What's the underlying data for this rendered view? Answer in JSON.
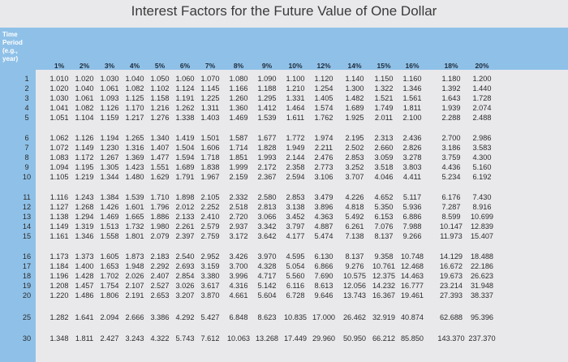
{
  "title": "Interest Factors for the Future Value of One Dollar",
  "header": {
    "row_label": [
      "Time",
      "Period",
      "(e.g.,",
      "year)"
    ],
    "rates": [
      "1%",
      "2%",
      "3%",
      "4%",
      "5%",
      "6%",
      "7%",
      "8%",
      "9%",
      "10%",
      "12%",
      "14%",
      "15%",
      "16%",
      "18%",
      "20%"
    ]
  },
  "rows": [
    {
      "period": "1",
      "values": [
        "1.010",
        "1.020",
        "1.030",
        "1.040",
        "1.050",
        "1.060",
        "1.070",
        "1.080",
        "1.090",
        "1.100",
        "1.120",
        "1.140",
        "1.150",
        "1.160",
        "1.180",
        "1.200"
      ]
    },
    {
      "period": "2",
      "values": [
        "1.020",
        "1.040",
        "1.061",
        "1.082",
        "1.102",
        "1.124",
        "1.145",
        "1.166",
        "1.188",
        "1.210",
        "1.254",
        "1.300",
        "1.322",
        "1.346",
        "1.392",
        "1.440"
      ]
    },
    {
      "period": "3",
      "values": [
        "1.030",
        "1.061",
        "1.093",
        "1.125",
        "1.158",
        "1.191",
        "1.225",
        "1.260",
        "1.295",
        "1.331",
        "1.405",
        "1.482",
        "1.521",
        "1.561",
        "1.643",
        "1.728"
      ]
    },
    {
      "period": "4",
      "values": [
        "1.041",
        "1.082",
        "1.126",
        "1.170",
        "1.216",
        "1.262",
        "1.311",
        "1.360",
        "1.412",
        "1.464",
        "1.574",
        "1.689",
        "1.749",
        "1.811",
        "1.939",
        "2.074"
      ]
    },
    {
      "period": "5",
      "values": [
        "1.051",
        "1.104",
        "1.159",
        "1.217",
        "1.276",
        "1.338",
        "1.403",
        "1.469",
        "1.539",
        "1.611",
        "1.762",
        "1.925",
        "2.011",
        "2.100",
        "2.288",
        "2.488"
      ]
    },
    {
      "period": "6",
      "values": [
        "1.062",
        "1.126",
        "1.194",
        "1.265",
        "1.340",
        "1.419",
        "1.501",
        "1.587",
        "1.677",
        "1.772",
        "1.974",
        "2.195",
        "2.313",
        "2.436",
        "2.700",
        "2.986"
      ]
    },
    {
      "period": "7",
      "values": [
        "1.072",
        "1.149",
        "1.230",
        "1.316",
        "1.407",
        "1.504",
        "1.606",
        "1.714",
        "1.828",
        "1.949",
        "2.211",
        "2.502",
        "2.660",
        "2.826",
        "3.186",
        "3.583"
      ]
    },
    {
      "period": "8",
      "values": [
        "1.083",
        "1.172",
        "1.267",
        "1.369",
        "1.477",
        "1.594",
        "1.718",
        "1.851",
        "1.993",
        "2.144",
        "2.476",
        "2.853",
        "3.059",
        "3.278",
        "3.759",
        "4.300"
      ]
    },
    {
      "period": "9",
      "values": [
        "1.094",
        "1.195",
        "1.305",
        "1.423",
        "1.551",
        "1.689",
        "1.838",
        "1.999",
        "2.172",
        "2.358",
        "2.773",
        "3.252",
        "3.518",
        "3.803",
        "4.436",
        "5.160"
      ]
    },
    {
      "period": "10",
      "values": [
        "1.105",
        "1.219",
        "1.344",
        "1.480",
        "1.629",
        "1.791",
        "1.967",
        "2.159",
        "2.367",
        "2.594",
        "3.106",
        "3.707",
        "4.046",
        "4.411",
        "5.234",
        "6.192"
      ]
    },
    {
      "period": "11",
      "values": [
        "1.116",
        "1.243",
        "1.384",
        "1.539",
        "1.710",
        "1.898",
        "2.105",
        "2.332",
        "2.580",
        "2.853",
        "3.479",
        "4.226",
        "4.652",
        "5.117",
        "6.176",
        "7.430"
      ]
    },
    {
      "period": "12",
      "values": [
        "1.127",
        "1.268",
        "1.426",
        "1.601",
        "1.796",
        "2.012",
        "2.252",
        "2.518",
        "2.813",
        "3.138",
        "3.896",
        "4.818",
        "5.350",
        "5.936",
        "7.287",
        "8.916"
      ]
    },
    {
      "period": "13",
      "values": [
        "1.138",
        "1.294",
        "1.469",
        "1.665",
        "1.886",
        "2.133",
        "2.410",
        "2.720",
        "3.066",
        "3.452",
        "4.363",
        "5.492",
        "6.153",
        "6.886",
        "8.599",
        "10.699"
      ]
    },
    {
      "period": "14",
      "values": [
        "1.149",
        "1.319",
        "1.513",
        "1.732",
        "1.980",
        "2.261",
        "2.579",
        "2.937",
        "3.342",
        "3.797",
        "4.887",
        "6.261",
        "7.076",
        "7.988",
        "10.147",
        "12.839"
      ]
    },
    {
      "period": "15",
      "values": [
        "1.161",
        "1.346",
        "1.558",
        "1.801",
        "2.079",
        "2.397",
        "2.759",
        "3.172",
        "3.642",
        "4.177",
        "5.474",
        "7.138",
        "8.137",
        "9.266",
        "11.973",
        "15.407"
      ]
    },
    {
      "period": "16",
      "values": [
        "1.173",
        "1.373",
        "1.605",
        "1.873",
        "2.183",
        "2.540",
        "2.952",
        "3.426",
        "3.970",
        "4.595",
        "6.130",
        "8.137",
        "9.358",
        "10.748",
        "14.129",
        "18.488"
      ]
    },
    {
      "period": "17",
      "values": [
        "1.184",
        "1.400",
        "1.653",
        "1.948",
        "2.292",
        "2.693",
        "3.159",
        "3.700",
        "4.328",
        "5.054",
        "6.866",
        "9.276",
        "10.761",
        "12.468",
        "16.672",
        "22.186"
      ]
    },
    {
      "period": "18",
      "values": [
        "1.196",
        "1.428",
        "1.702",
        "2.026",
        "2.407",
        "2.854",
        "3.380",
        "3.996",
        "4.717",
        "5.560",
        "7.690",
        "10.575",
        "12.375",
        "14.463",
        "19.673",
        "26.623"
      ]
    },
    {
      "period": "19",
      "values": [
        "1.208",
        "1.457",
        "1.754",
        "2.107",
        "2.527",
        "3.026",
        "3.617",
        "4.316",
        "5.142",
        "6.116",
        "8.613",
        "12.056",
        "14.232",
        "16.777",
        "23.214",
        "31.948"
      ]
    },
    {
      "period": "20",
      "values": [
        "1.220",
        "1.486",
        "1.806",
        "2.191",
        "2.653",
        "3.207",
        "3.870",
        "4.661",
        "5.604",
        "6.728",
        "9.646",
        "13.743",
        "16.367",
        "19.461",
        "27.393",
        "38.337"
      ]
    },
    {
      "period": "25",
      "values": [
        "1.282",
        "1.641",
        "2.094",
        "2.666",
        "3.386",
        "4.292",
        "5.427",
        "6.848",
        "8.623",
        "10.835",
        "17.000",
        "26.462",
        "32.919",
        "40.874",
        "62.688",
        "95.396"
      ]
    },
    {
      "period": "30",
      "values": [
        "1.348",
        "1.811",
        "2.427",
        "3.243",
        "4.322",
        "5.743",
        "7.612",
        "10.063",
        "13.268",
        "17.449",
        "29.960",
        "50.950",
        "66.212",
        "85.850",
        "143.370",
        "237.370"
      ]
    }
  ],
  "colors": {
    "header_band": "#8fc1e8",
    "background": "#e9e9ec",
    "title_text": "#3a3a3a"
  }
}
